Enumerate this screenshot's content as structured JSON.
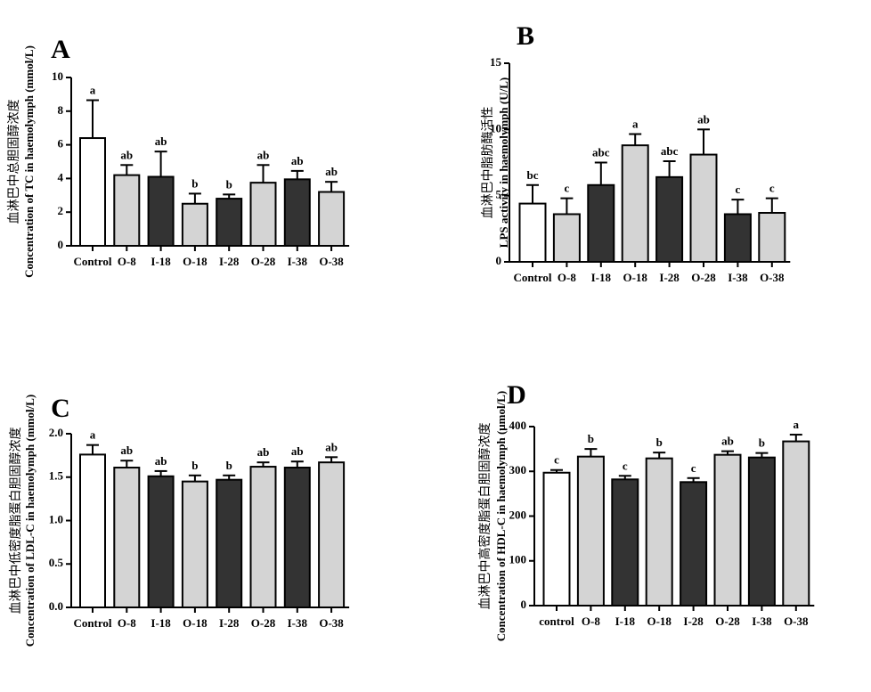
{
  "colors": {
    "white_bar": "#ffffff",
    "light_bar": "#d4d4d4",
    "dark_bar": "#333333",
    "stroke": "#000000"
  },
  "chart_data": [
    {
      "panel": "A",
      "type": "bar",
      "ylabel_zh": "血淋巴中总胆固醇浓度",
      "ylabel": "Concentration of TC in haemolymph (mmol/L)",
      "ylim": [
        0,
        10
      ],
      "yticks": [
        0,
        2,
        4,
        6,
        8,
        10
      ],
      "ytick_labels": [
        "0",
        "2",
        "4",
        "6",
        "8",
        "10"
      ],
      "categories": [
        "Control",
        "O-8",
        "I-18",
        "O-18",
        "I-28",
        "O-28",
        "I-38",
        "O-38"
      ],
      "values": [
        6.4,
        4.2,
        4.1,
        2.5,
        2.8,
        3.75,
        3.95,
        3.2
      ],
      "errors": [
        2.25,
        0.6,
        1.5,
        0.6,
        0.25,
        1.05,
        0.5,
        0.6
      ],
      "letters": [
        "a",
        "ab",
        "ab",
        "b",
        "b",
        "ab",
        "ab",
        "ab"
      ],
      "fills": [
        "white",
        "light",
        "dark",
        "light",
        "dark",
        "light",
        "dark",
        "light"
      ]
    },
    {
      "panel": "B",
      "type": "bar",
      "ylabel_zh": "血淋巴中脂肪酶活性",
      "ylabel": "LPS activity in haemolymph (U/L)",
      "ylim": [
        0,
        15
      ],
      "yticks": [
        0,
        5,
        10,
        15
      ],
      "ytick_labels": [
        "0",
        "5",
        "10",
        "15"
      ],
      "categories": [
        "Control",
        "O-8",
        "I-18",
        "O-18",
        "I-28",
        "O-28",
        "I-38",
        "O-38"
      ],
      "values": [
        4.4,
        3.6,
        5.8,
        8.8,
        6.4,
        8.1,
        3.6,
        3.7
      ],
      "errors": [
        1.4,
        1.2,
        1.7,
        0.85,
        1.2,
        1.9,
        1.1,
        1.1
      ],
      "letters": [
        "bc",
        "c",
        "abc",
        "a",
        "abc",
        "ab",
        "c",
        "c"
      ],
      "fills": [
        "white",
        "light",
        "dark",
        "light",
        "dark",
        "light",
        "dark",
        "light"
      ]
    },
    {
      "panel": "C",
      "type": "bar",
      "ylabel_zh": "血淋巴中低密度脂蛋白胆固醇浓度",
      "ylabel": "Concentration of LDL-C in haemolymph (mmol/L)",
      "ylim": [
        0,
        2.0
      ],
      "yticks": [
        0,
        0.5,
        1.0,
        1.5,
        2.0
      ],
      "ytick_labels": [
        "0.0",
        "0.5",
        "1.0",
        "1.5",
        "2.0"
      ],
      "categories": [
        "Control",
        "O-8",
        "I-18",
        "O-18",
        "I-28",
        "O-28",
        "I-38",
        "O-38"
      ],
      "values": [
        1.76,
        1.61,
        1.51,
        1.45,
        1.47,
        1.62,
        1.61,
        1.67
      ],
      "errors": [
        0.11,
        0.08,
        0.06,
        0.07,
        0.05,
        0.05,
        0.07,
        0.06
      ],
      "letters": [
        "a",
        "ab",
        "ab",
        "b",
        "b",
        "ab",
        "ab",
        "ab"
      ],
      "fills": [
        "white",
        "light",
        "dark",
        "light",
        "dark",
        "light",
        "dark",
        "light"
      ]
    },
    {
      "panel": "D",
      "type": "bar",
      "ylabel_zh": "血淋巴中高密度脂蛋白胆固醇浓度",
      "ylabel": "Concentration of HDL-C in haemolymph  (μmol/L)",
      "ylim": [
        0,
        400
      ],
      "yticks": [
        0,
        100,
        200,
        300,
        400
      ],
      "ytick_labels": [
        "0",
        "100",
        "200",
        "300",
        "400"
      ],
      "categories": [
        "control",
        "O-8",
        "I-18",
        "O-18",
        "I-28",
        "O-28",
        "I-38",
        "O-38"
      ],
      "values": [
        297,
        333,
        282,
        329,
        276,
        337,
        331,
        367
      ],
      "errors": [
        6,
        17,
        8,
        13,
        9,
        8,
        10,
        15
      ],
      "letters": [
        "c",
        "b",
        "c",
        "b",
        "c",
        "ab",
        "b",
        "a"
      ],
      "fills": [
        "white",
        "light",
        "dark",
        "light",
        "dark",
        "light",
        "dark",
        "light"
      ]
    }
  ]
}
